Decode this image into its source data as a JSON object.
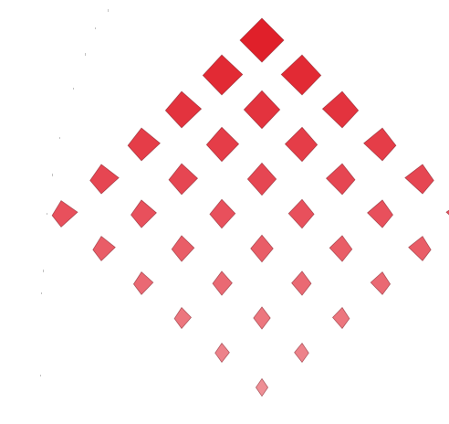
{
  "logo": {
    "shape": "diamond-grid-fan",
    "colors": {
      "top": "#e0202a",
      "middle": "#e8505c",
      "bottom": "#ee8f95"
    }
  }
}
